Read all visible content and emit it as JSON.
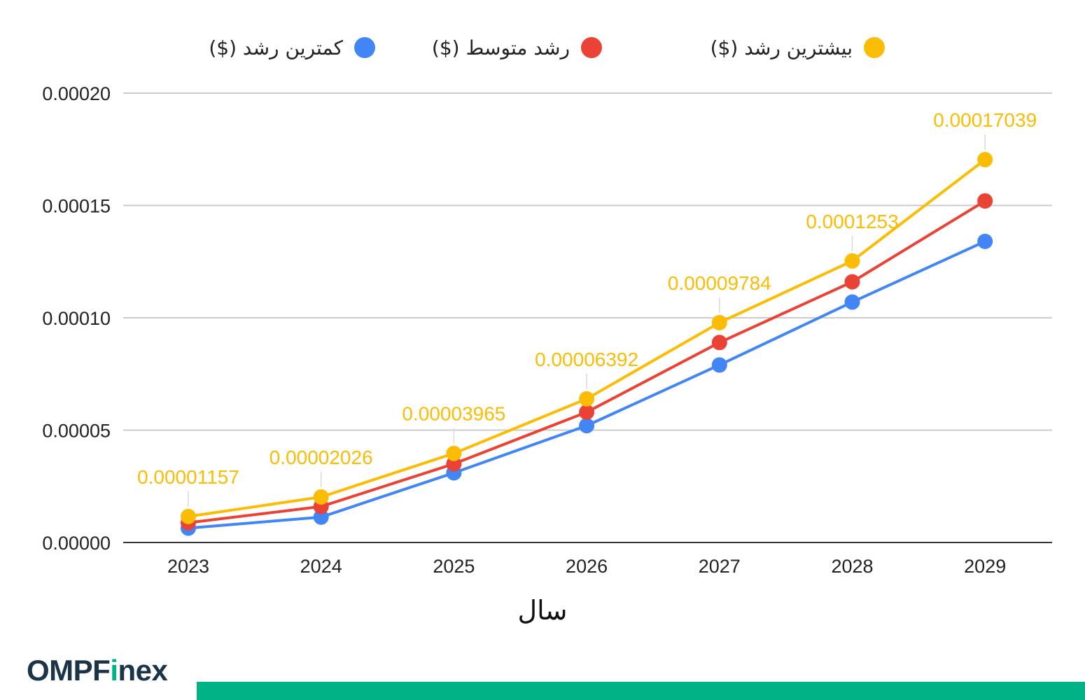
{
  "chart_data": {
    "type": "line",
    "categories": [
      "2023",
      "2024",
      "2025",
      "2026",
      "2027",
      "2028",
      "2029"
    ],
    "xlabel": "سال",
    "ylabel": "",
    "ylim": [
      0,
      0.0002
    ],
    "yticks": [
      "0.00000",
      "0.00005",
      "0.00010",
      "0.00015",
      "0.00020"
    ],
    "ytick_values": [
      0,
      5e-05,
      0.0001,
      0.00015,
      0.0002
    ],
    "grid": true,
    "legend_position": "top",
    "series": [
      {
        "name": "کمترین رشد ($)",
        "color": "#4285f4",
        "values": [
          6.4e-06,
          1.13e-05,
          3.1e-05,
          5.2e-05,
          7.9e-05,
          0.000107,
          0.000134
        ]
      },
      {
        "name": "رشد متوسط ($)",
        "color": "#ea4335",
        "values": [
          8.8e-06,
          1.6e-05,
          3.5e-05,
          5.8e-05,
          8.9e-05,
          0.000116,
          0.000152
        ]
      },
      {
        "name": "بیشترین رشد ($)",
        "color": "#fbbc04",
        "values": [
          1.157e-05,
          2.026e-05,
          3.965e-05,
          6.392e-05,
          9.784e-05,
          0.0001253,
          0.00017039
        ],
        "data_labels": [
          "0.00001157",
          "0.00002026",
          "0.00003965",
          "0.00006392",
          "0.00009784",
          "0.0001253",
          "0.00017039"
        ]
      }
    ]
  },
  "brand": {
    "prefix": "OMPF",
    "accent": "i",
    "suffix": "nex",
    "accent_color": "#00b386",
    "text_color": "#1c3447"
  },
  "footer_bar_color": "#00b386"
}
